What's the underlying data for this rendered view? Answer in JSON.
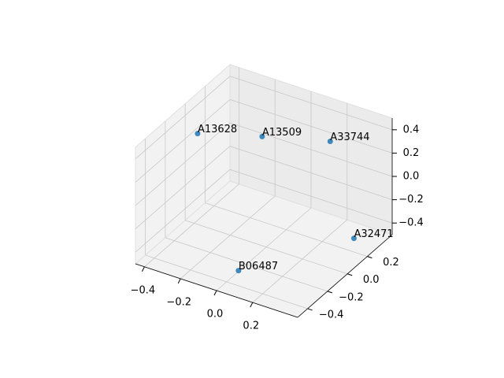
{
  "chart_data": {
    "type": "scatter3d",
    "point_labels": [
      "A13628",
      "A13509",
      "A33744",
      "A32471",
      "B06487"
    ],
    "x": [
      -0.37,
      -0.15,
      0.2,
      0.42,
      0.05
    ],
    "y": [
      -0.02,
      0.23,
      0.28,
      0.12,
      -0.37
    ],
    "z": [
      0.3,
      0.2,
      0.3,
      -0.3,
      -0.4
    ],
    "color": "#1f77b4",
    "xlim": [
      -0.45,
      0.45
    ],
    "ylim": [
      -0.5,
      0.45
    ],
    "zlim": [
      -0.5,
      0.5
    ],
    "xticks": [
      {
        "value": -0.4,
        "label": "−0.4"
      },
      {
        "value": -0.2,
        "label": "−0.2"
      },
      {
        "value": 0,
        "label": "0.0"
      },
      0.2
    ],
    "yticks": [
      {
        "value": -0.4,
        "label": "−0.4"
      },
      {
        "value": -0.2,
        "label": "−0.2"
      },
      {
        "value": 0,
        "label": "0.0"
      },
      0.2
    ],
    "zticks": [
      {
        "value": -0.4,
        "label": "−0.4"
      },
      {
        "value": -0.2,
        "label": "−0.2"
      },
      {
        "value": 0,
        "label": "0.0"
      },
      0.2,
      0.4
    ],
    "grid": true
  }
}
